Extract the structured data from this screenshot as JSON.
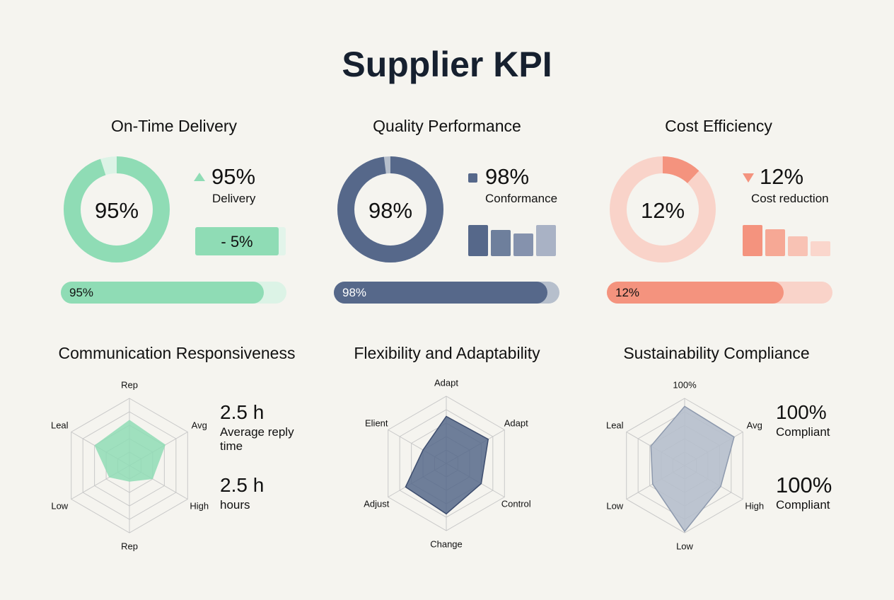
{
  "title": "Supplier KPI",
  "colors": {
    "green": "#8fdcb5",
    "green_light": "#dcf3e6",
    "navy": "#56688a",
    "navy_light": "#b6bfcc",
    "salmon": "#f4937e",
    "salmon_light": "#f9d3c9",
    "grid": "#c8c8c8"
  },
  "chart_data": [
    {
      "type": "pie",
      "title": "On-Time Delivery",
      "value": 95,
      "center_label": "95%",
      "kpi": "95%",
      "kpi_label": "Delivery",
      "kpi_icon": "triangle-up-icon",
      "change_label": "- 5%",
      "progress": 95,
      "progress_label": "95%"
    },
    {
      "type": "pie",
      "title": "Quality Performance",
      "value": 98,
      "center_label": "98%",
      "kpi": "98%",
      "kpi_label": "Conformance",
      "kpi_icon": "square-icon",
      "bars": [
        44,
        37,
        32,
        44
      ],
      "progress": 98,
      "progress_label": "98%"
    },
    {
      "type": "pie",
      "title": "Cost Efficiency",
      "value": 12,
      "center_label": "12%",
      "kpi": "12%",
      "kpi_label": "Cost reduction",
      "kpi_icon": "triangle-down-icon",
      "bars": [
        44,
        38,
        28,
        21
      ],
      "progress": 12,
      "progress_label": "12%"
    },
    {
      "type": "radar",
      "title": "Communication Responsiveness",
      "axes": [
        "Rep",
        "Avg",
        "High",
        "Rep",
        "Low",
        "Leal"
      ],
      "values": [
        0.68,
        0.62,
        0.4,
        0.24,
        0.35,
        0.6
      ],
      "stats": [
        {
          "value": "2.5 h",
          "label": "Average reply time"
        },
        {
          "value": "2.5 h",
          "label": "hours"
        }
      ]
    },
    {
      "type": "radar",
      "title": "Flexibility and Adaptability",
      "axes": [
        "Adapt",
        "Adapt",
        "Control",
        "Change",
        "Adjust",
        "Elient"
      ],
      "values": [
        0.7,
        0.72,
        0.6,
        0.75,
        0.7,
        0.4
      ]
    },
    {
      "type": "radar",
      "title": "Sustainability Compliance",
      "axes": [
        "100%",
        "Avg",
        "High",
        "Low",
        "Low",
        "Leal"
      ],
      "values": [
        0.88,
        0.85,
        0.62,
        0.98,
        0.55,
        0.58
      ],
      "stats": [
        {
          "value": "100%",
          "label": "Compliant"
        },
        {
          "value": "100%",
          "label": "Compliant"
        }
      ]
    }
  ]
}
